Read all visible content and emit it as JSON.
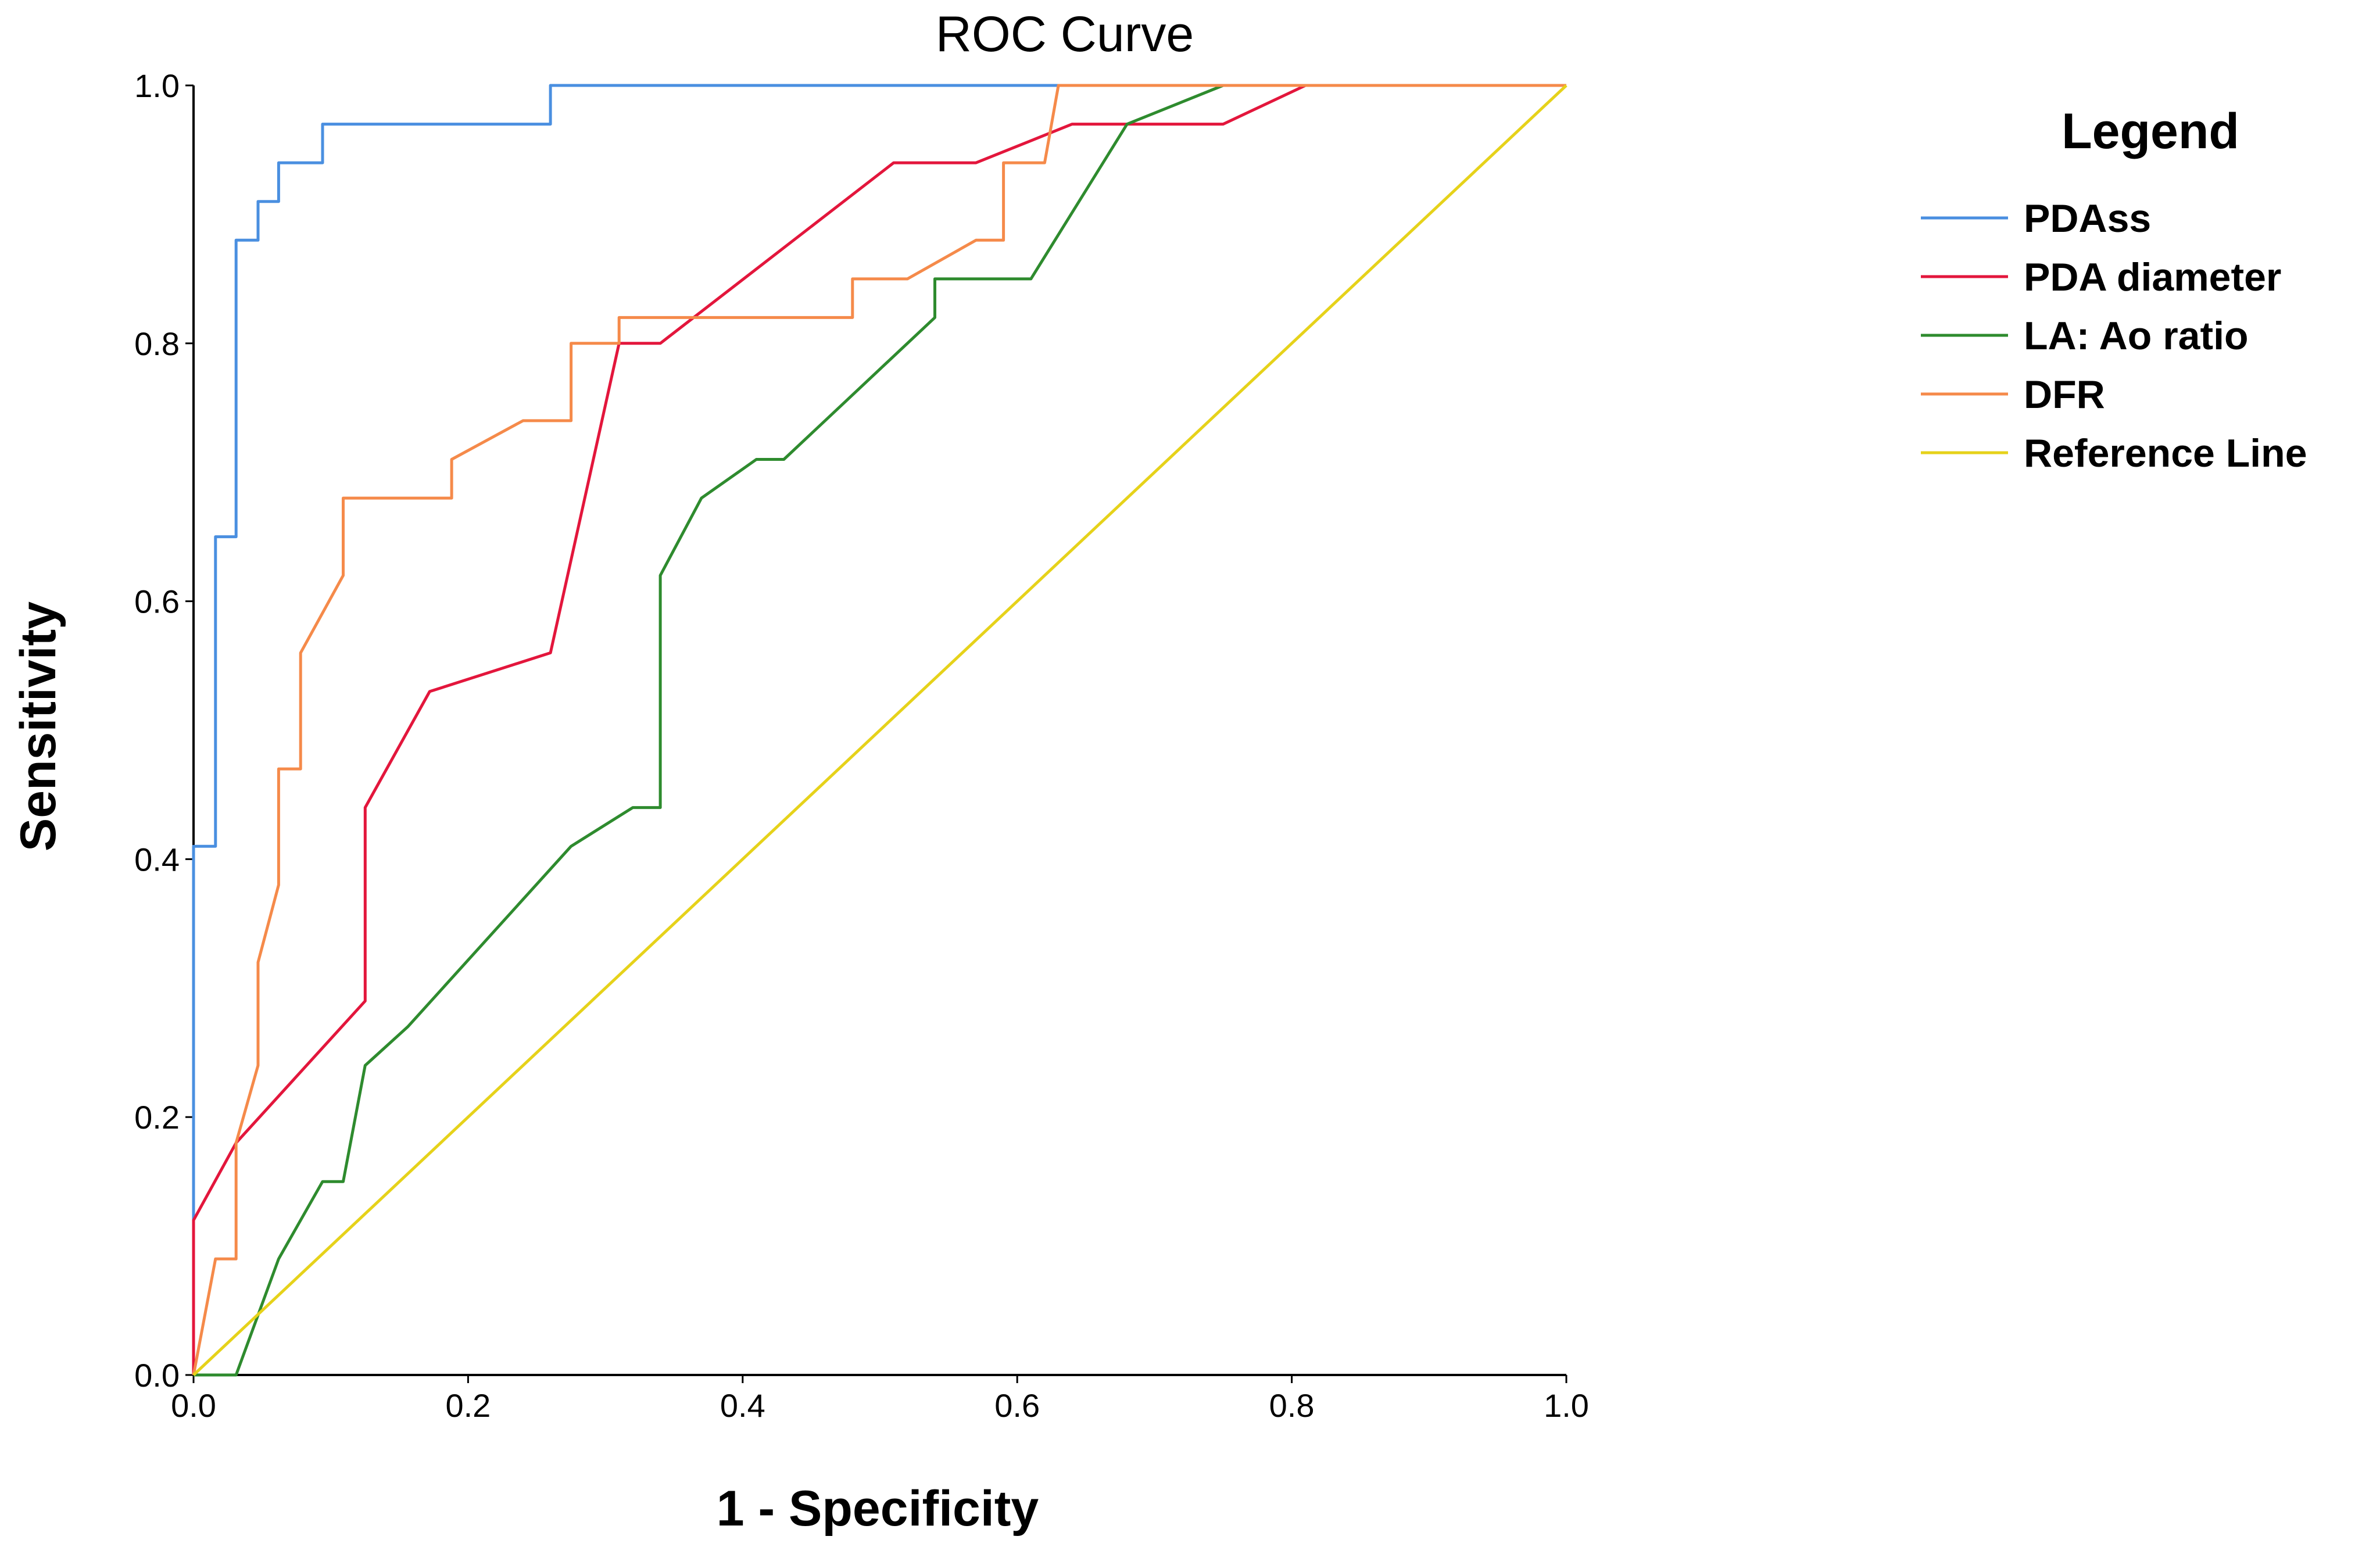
{
  "chart_data": {
    "type": "line",
    "title": "ROC Curve",
    "xlabel": "1 - Specificity",
    "ylabel": "Sensitivity",
    "xlim": [
      0,
      1
    ],
    "ylim": [
      0,
      1
    ],
    "xticks": [
      "0.0",
      "0.2",
      "0.4",
      "0.6",
      "0.8",
      "1.0"
    ],
    "yticks": [
      "0.0",
      "0.2",
      "0.4",
      "0.6",
      "0.8",
      "1.0"
    ],
    "grid": false,
    "legend": {
      "title": "Legend",
      "placement": "right"
    },
    "series": [
      {
        "name": "PDAss",
        "color": "#4a8fe0",
        "x": [
          0,
          0,
          0.016,
          0.016,
          0.031,
          0.031,
          0.047,
          0.047,
          0.062,
          0.062,
          0.094,
          0.094,
          0.26,
          0.26,
          1
        ],
        "y": [
          0,
          0.41,
          0.41,
          0.65,
          0.65,
          0.88,
          0.88,
          0.91,
          0.91,
          0.94,
          0.94,
          0.97,
          0.97,
          1,
          1
        ]
      },
      {
        "name": "PDA diameter",
        "color": "#e3163c",
        "x": [
          0,
          0,
          0.031,
          0.125,
          0.125,
          0.172,
          0.26,
          0.31,
          0.34,
          0.51,
          0.57,
          0.64,
          0.75,
          0.81,
          1
        ],
        "y": [
          0,
          0.12,
          0.18,
          0.29,
          0.44,
          0.53,
          0.56,
          0.8,
          0.8,
          0.94,
          0.94,
          0.97,
          0.97,
          1,
          1
        ]
      },
      {
        "name": "LA: Ao ratio",
        "color": "#2e8b2e",
        "x": [
          0,
          0.031,
          0.062,
          0.094,
          0.109,
          0.125,
          0.156,
          0.275,
          0.32,
          0.34,
          0.34,
          0.37,
          0.41,
          0.43,
          0.54,
          0.54,
          0.61,
          0.68,
          0.75,
          1
        ],
        "y": [
          0,
          0,
          0.09,
          0.15,
          0.15,
          0.24,
          0.27,
          0.41,
          0.44,
          0.44,
          0.62,
          0.68,
          0.71,
          0.71,
          0.82,
          0.85,
          0.85,
          0.97,
          1,
          1
        ]
      },
      {
        "name": "DFR",
        "color": "#f58a4a",
        "x": [
          0,
          0.016,
          0.031,
          0.031,
          0.047,
          0.047,
          0.062,
          0.062,
          0.078,
          0.078,
          0.109,
          0.109,
          0.188,
          0.188,
          0.24,
          0.275,
          0.275,
          0.31,
          0.31,
          0.48,
          0.48,
          0.52,
          0.57,
          0.57,
          0.59,
          0.59,
          0.62,
          0.63,
          1
        ],
        "y": [
          0,
          0.09,
          0.09,
          0.18,
          0.24,
          0.32,
          0.38,
          0.47,
          0.47,
          0.56,
          0.62,
          0.68,
          0.68,
          0.71,
          0.74,
          0.74,
          0.8,
          0.8,
          0.82,
          0.82,
          0.85,
          0.85,
          0.88,
          0.88,
          0.88,
          0.94,
          0.94,
          1,
          1
        ]
      },
      {
        "name": "Reference Line",
        "color": "#e6d21a",
        "x": [
          0,
          1
        ],
        "y": [
          0,
          1
        ]
      }
    ]
  }
}
